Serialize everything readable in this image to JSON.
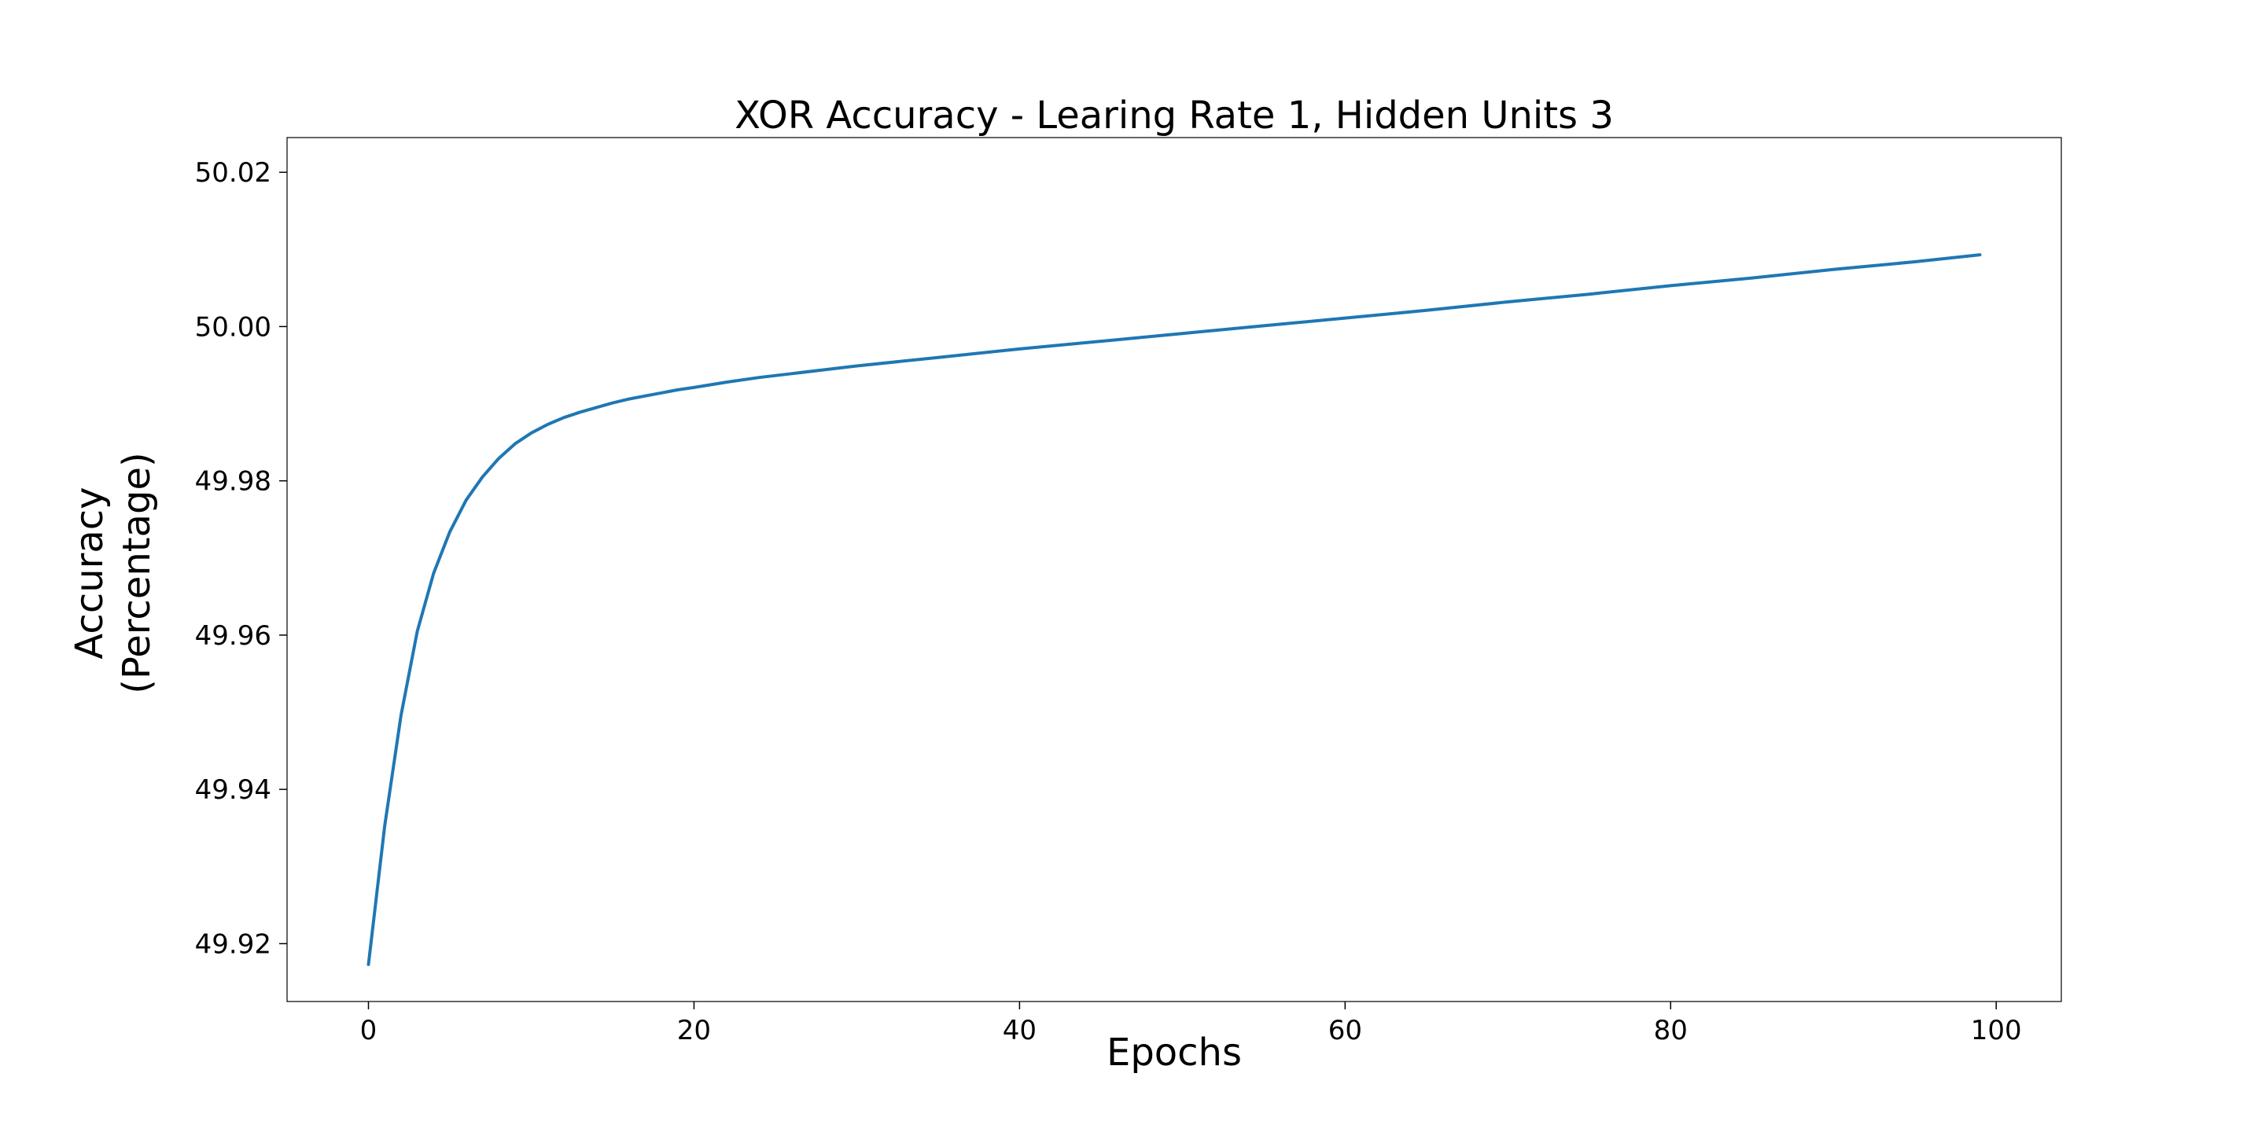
{
  "chart_data": {
    "type": "line",
    "title": "XOR Accuracy - Learing Rate 1, Hidden Units 3",
    "xlabel": "Epochs",
    "ylabel_lines": [
      "Accuracy",
      "(Percentage)"
    ],
    "xlim": [
      -5,
      104
    ],
    "ylim": [
      49.9125,
      50.0245
    ],
    "xticks": [
      0,
      20,
      40,
      60,
      80,
      100
    ],
    "yticks": [
      49.92,
      49.94,
      49.96,
      49.98,
      50.0,
      50.02
    ],
    "ytick_labels": [
      "49.92",
      "49.94",
      "49.96",
      "49.98",
      "50.00",
      "50.02"
    ],
    "grid": false,
    "legend": "none",
    "series": [
      {
        "color": "#1f77b4",
        "x": [
          0,
          1,
          2,
          3,
          4,
          5,
          6,
          7,
          8,
          9,
          10,
          11,
          12,
          13,
          14,
          15,
          16,
          17,
          18,
          19,
          20,
          22,
          24,
          26,
          28,
          30,
          35,
          40,
          45,
          50,
          55,
          60,
          65,
          70,
          75,
          80,
          85,
          90,
          95,
          99
        ],
        "y": [
          49.9173,
          49.9353,
          49.9496,
          49.9605,
          49.968,
          49.9734,
          49.9775,
          49.9805,
          49.9829,
          49.9848,
          49.9862,
          49.9873,
          49.9882,
          49.9889,
          49.9895,
          49.9901,
          49.9906,
          49.991,
          49.9914,
          49.9918,
          49.9921,
          49.9928,
          49.9934,
          49.9939,
          49.9944,
          49.9949,
          49.996,
          49.9971,
          49.9981,
          49.9991,
          50.0001,
          50.0011,
          50.0021,
          50.0032,
          50.0042,
          50.0053,
          50.0063,
          50.0074,
          50.0084,
          50.0093
        ]
      }
    ]
  }
}
